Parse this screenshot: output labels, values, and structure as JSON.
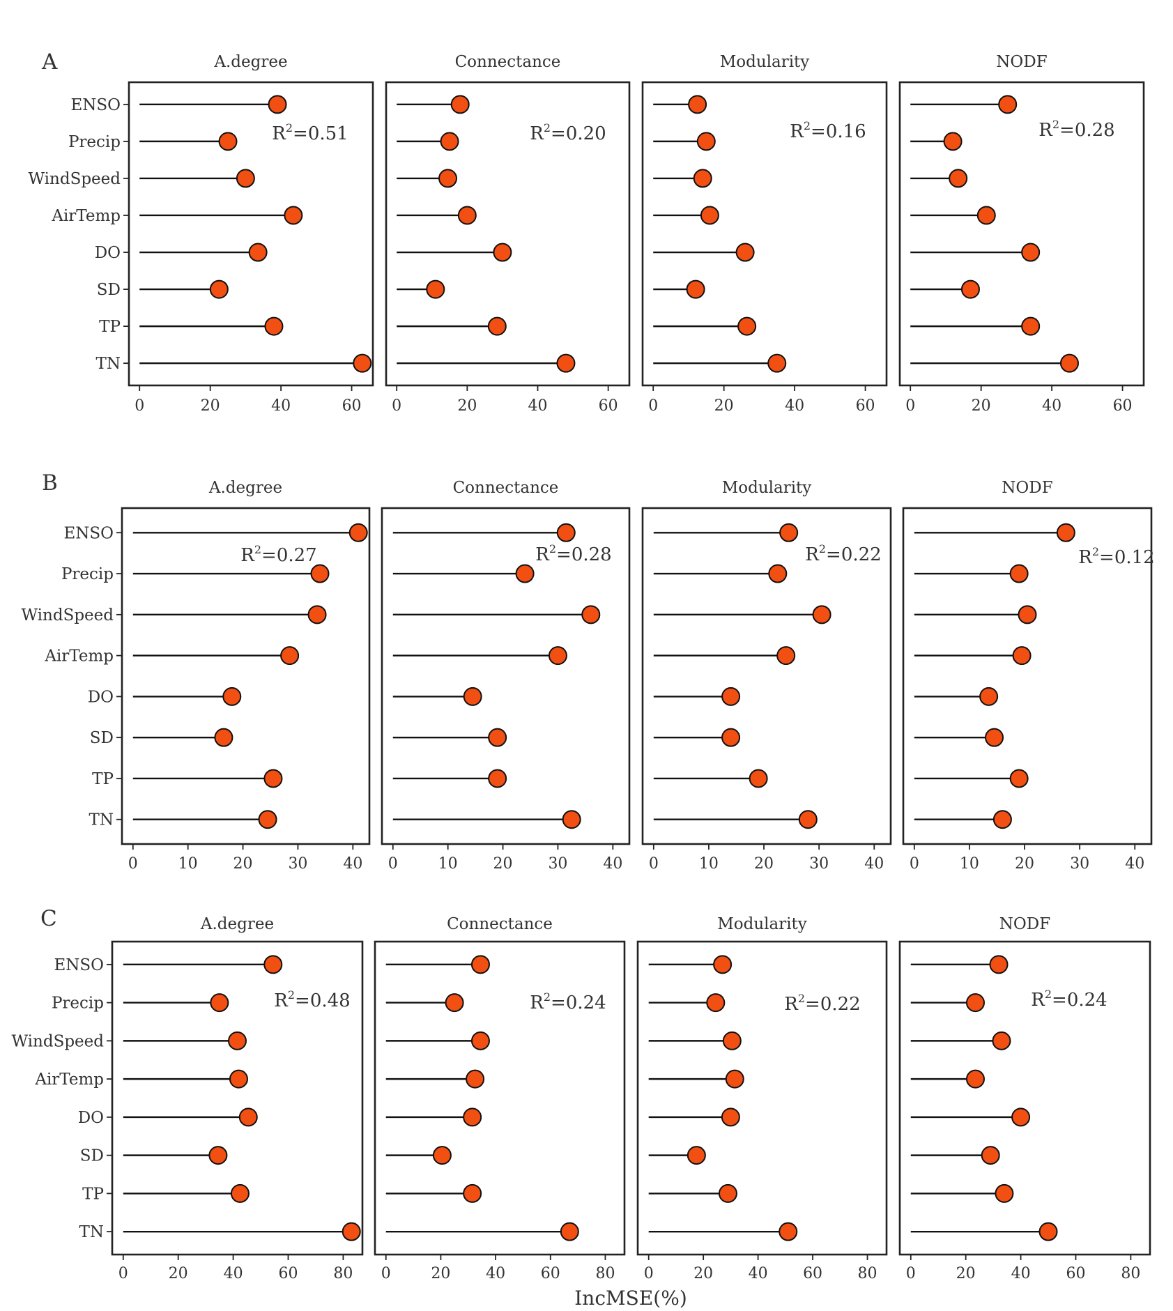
{
  "colors": {
    "marker": "#f24f12",
    "marker_stroke": "#111111",
    "stem": "#111111",
    "frame": "#222222"
  },
  "chart_data": [
    {
      "row": "A",
      "type": "lollipop",
      "categories": [
        "ENSO",
        "Precip",
        "WindSpeed",
        "AirTemp",
        "DO",
        "SD",
        "TP",
        "TN"
      ],
      "xlim": [
        -3,
        66
      ],
      "xticks": [
        0,
        20,
        40,
        60
      ],
      "panels": [
        {
          "title": "A.degree",
          "r2": "=0.51",
          "values": [
            39,
            25,
            30,
            43.5,
            33.5,
            22.5,
            38,
            63
          ]
        },
        {
          "title": "Connectance",
          "r2": "=0.20",
          "values": [
            18,
            15,
            14.5,
            20,
            30,
            11,
            28.5,
            48
          ]
        },
        {
          "title": "Modularity",
          "r2": "=0.16",
          "values": [
            12.5,
            15,
            14,
            16,
            26,
            12,
            26.5,
            35
          ]
        },
        {
          "title": "NODF",
          "r2": "=0.28",
          "values": [
            27.5,
            12,
            13.5,
            21.5,
            34,
            17,
            34,
            45
          ]
        }
      ]
    },
    {
      "row": "B",
      "type": "lollipop",
      "categories": [
        "ENSO",
        "Precip",
        "WindSpeed",
        "AirTemp",
        "DO",
        "SD",
        "TP",
        "TN"
      ],
      "xlim": [
        -2,
        43
      ],
      "xticks": [
        0,
        10,
        20,
        30,
        40
      ],
      "panels": [
        {
          "title": "A.degree",
          "r2": "=0.27",
          "values": [
            41,
            34,
            33.5,
            28.5,
            18,
            16.5,
            25.5,
            24.5
          ]
        },
        {
          "title": "Connectance",
          "r2": "=0.28",
          "values": [
            31.5,
            24,
            36,
            30,
            14.5,
            19,
            19,
            32.5
          ]
        },
        {
          "title": "Modularity",
          "r2": "=0.22",
          "values": [
            24.5,
            22.5,
            30.5,
            24,
            14,
            14,
            19,
            28
          ]
        },
        {
          "title": "NODF",
          "r2": "=0.12",
          "values": [
            27.5,
            19,
            20.5,
            19.5,
            13.5,
            14.5,
            19,
            16
          ]
        }
      ]
    },
    {
      "row": "C",
      "type": "lollipop",
      "categories": [
        "ENSO",
        "Precip",
        "WindSpeed",
        "AirTemp",
        "DO",
        "SD",
        "TP",
        "TN"
      ],
      "xlim": [
        -4,
        87
      ],
      "xticks": [
        0,
        20,
        40,
        60,
        80
      ],
      "panels": [
        {
          "title": "A.degree",
          "r2": "=0.48",
          "values": [
            54.5,
            35,
            41.5,
            42,
            45.5,
            34.5,
            42.5,
            83
          ]
        },
        {
          "title": "Connectance",
          "r2": "=0.24",
          "values": [
            34.5,
            25,
            34.5,
            32.5,
            31.5,
            20.5,
            31.5,
            67
          ]
        },
        {
          "title": "Modularity",
          "r2": "=0.22",
          "values": [
            27,
            24.5,
            30.5,
            31.5,
            30,
            17.5,
            29,
            51
          ]
        },
        {
          "title": "NODF",
          "r2": "=0.24",
          "values": [
            32,
            23.5,
            33,
            23.5,
            40,
            29,
            34,
            50
          ]
        }
      ]
    }
  ],
  "x_axis_title": "IncMSE(%)",
  "r2_symbol": "R",
  "r2_superscript": "2"
}
